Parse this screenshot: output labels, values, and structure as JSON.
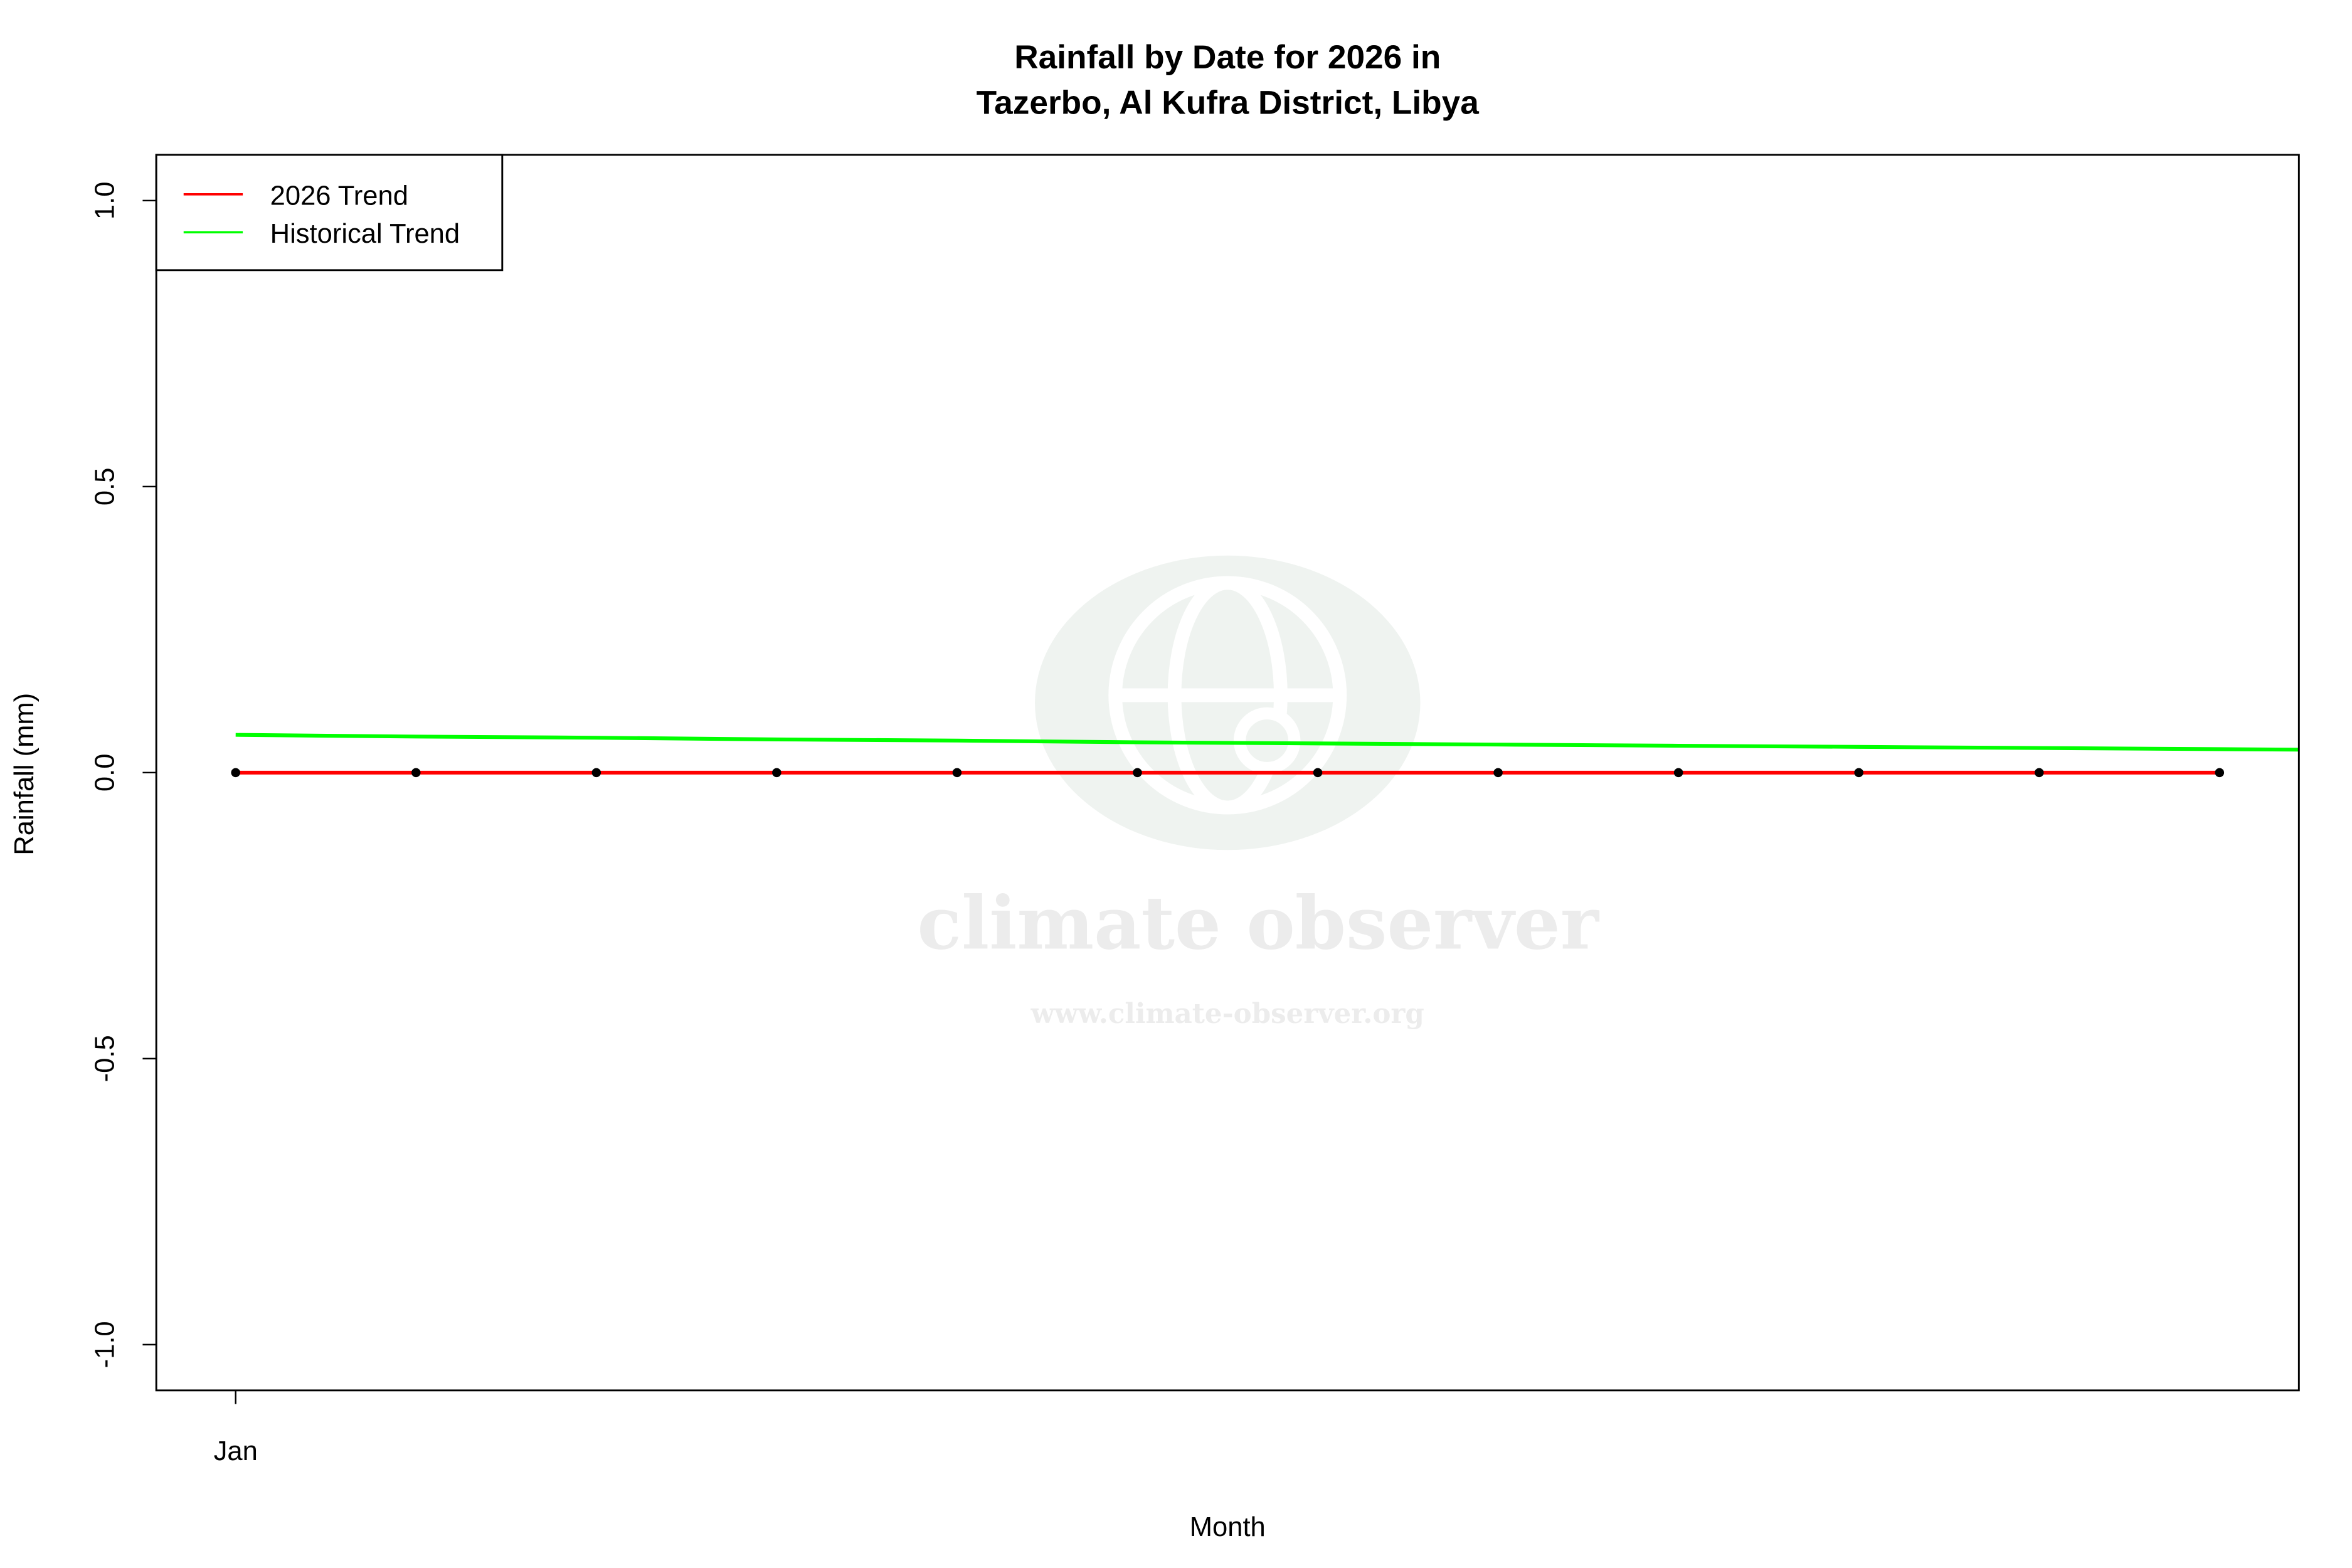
{
  "chart_data": {
    "type": "line",
    "title": "Rainfall by Date for 2026 in",
    "subtitle": "Tazerbo, Al Kufra District, Libya",
    "xlabel": "Month",
    "ylabel": "Rainfall (mm)",
    "x_tick_labels": [
      {
        "x": 1,
        "label": "Jan"
      }
    ],
    "y_ticks": [
      {
        "y": 1.0,
        "label": "1.0"
      },
      {
        "y": 0.5,
        "label": "0.5"
      },
      {
        "y": 0.0,
        "label": "0.0"
      },
      {
        "y": -0.5,
        "label": "-0.5"
      },
      {
        "y": -1.0,
        "label": "-1.0"
      }
    ],
    "xlim": [
      1,
      12
    ],
    "ylim": [
      -1,
      1
    ],
    "grid": false,
    "legend_position": "top-left",
    "series": [
      {
        "name": "2026 Trend",
        "color": "#ff0000",
        "x": [
          1,
          2,
          3,
          4,
          5,
          6,
          7,
          8,
          9,
          10,
          11,
          12
        ],
        "values": [
          0,
          0,
          0,
          0,
          0,
          0,
          0,
          0,
          0,
          0,
          0,
          0
        ],
        "points": true,
        "point_color": "#000000"
      },
      {
        "name": "Historical Trend",
        "color": "#00ff00",
        "x": [
          1,
          2,
          3,
          4,
          5,
          6,
          7,
          8,
          9,
          10,
          11,
          12,
          13
        ],
        "values": [
          0.066,
          0.063,
          0.061,
          0.058,
          0.056,
          0.053,
          0.051,
          0.049,
          0.047,
          0.045,
          0.043,
          0.041,
          0.039
        ]
      }
    ]
  },
  "watermark": {
    "name": "climate observer",
    "url": "www.climate-observer.org",
    "color": "#ececec"
  }
}
